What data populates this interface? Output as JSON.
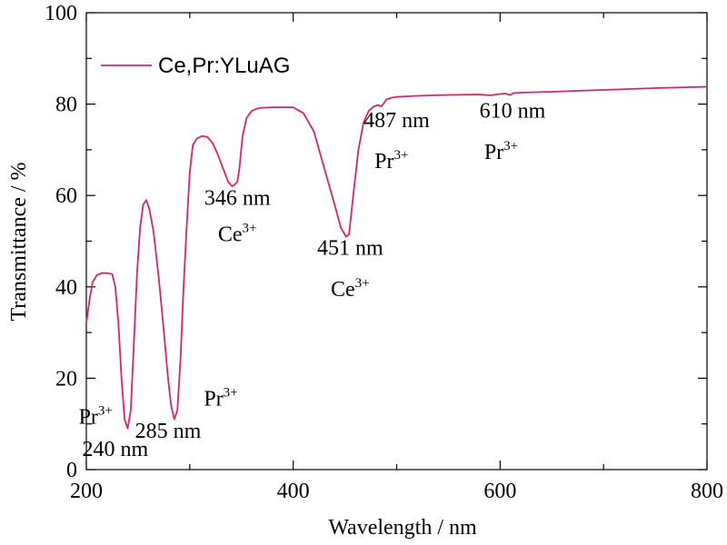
{
  "chart_data": {
    "type": "line",
    "xlabel": "Wavelength / nm",
    "ylabel": "Transmittance / %",
    "xlim": [
      200,
      800
    ],
    "ylim": [
      0,
      100
    ],
    "x_ticks": [
      200,
      400,
      600,
      800
    ],
    "y_ticks": [
      0,
      20,
      40,
      60,
      80,
      100
    ],
    "x_tick_labels": [
      "200",
      "400",
      "600",
      "800"
    ],
    "y_tick_labels": [
      "0",
      "20",
      "40",
      "60",
      "80",
      "100"
    ],
    "grid": false,
    "legend_position": "top-left",
    "series": [
      {
        "name": "Ce,Pr:YLuAG",
        "color": "#d6246e",
        "x": [
          200,
          203,
          206,
          210,
          215,
          220,
          225,
          228,
          231,
          234,
          237,
          240,
          243,
          246,
          249,
          252,
          255,
          258,
          261,
          265,
          270,
          275,
          279,
          282,
          285,
          288,
          291,
          294,
          297,
          300,
          303,
          307,
          312,
          317,
          322,
          327,
          332,
          337,
          341,
          344,
          346,
          348,
          351,
          355,
          360,
          365,
          370,
          380,
          390,
          400,
          410,
          420,
          430,
          440,
          446,
          451,
          454,
          458,
          463,
          468,
          473,
          478,
          482,
          485,
          487,
          490,
          495,
          500,
          520,
          550,
          580,
          590,
          600,
          605,
          608,
          610,
          613,
          620,
          650,
          700,
          750,
          800
        ],
        "y": [
          32,
          37,
          41,
          42.5,
          43,
          43,
          42.8,
          40,
          32,
          20,
          11,
          9,
          13,
          28,
          43,
          53,
          58,
          59,
          57,
          52,
          42,
          30,
          20,
          14,
          11,
          13,
          24,
          40,
          53,
          65,
          71,
          72.5,
          73,
          72.8,
          71.5,
          69,
          66,
          63,
          62,
          62.5,
          63,
          66,
          73,
          77,
          78.5,
          79,
          79.2,
          79.3,
          79.3,
          79.3,
          78,
          74,
          66,
          58,
          53,
          51,
          51.5,
          60,
          70,
          76,
          78.5,
          79.5,
          79.8,
          79.5,
          80,
          81,
          81.4,
          81.6,
          81.8,
          82,
          82.1,
          81.9,
          82.2,
          82.3,
          82.1,
          82,
          82.4,
          82.5,
          82.7,
          83.1,
          83.5,
          83.8
        ]
      }
    ],
    "annotations": [
      {
        "text": "240 nm",
        "x": 228,
        "y": 3
      },
      {
        "text": "285 nm",
        "x": 279,
        "y": 7
      },
      {
        "text": "346 nm",
        "x": 346,
        "y": 58
      },
      {
        "text": "451 nm",
        "x": 455,
        "y": 47
      },
      {
        "text": "487 nm",
        "x": 500,
        "y": 75
      },
      {
        "text": "610 nm",
        "x": 612,
        "y": 77
      }
    ],
    "ion_labels": [
      {
        "base": "Pr",
        "sup": "3+",
        "x": 209,
        "y": 10
      },
      {
        "base": "Pr",
        "sup": "3+",
        "x": 330,
        "y": 14
      },
      {
        "base": "Ce",
        "sup": "3+",
        "x": 346,
        "y": 50
      },
      {
        "base": "Ce",
        "sup": "3+",
        "x": 455,
        "y": 38
      },
      {
        "base": "Pr",
        "sup": "3+",
        "x": 495,
        "y": 66
      },
      {
        "base": "Pr",
        "sup": "3+",
        "x": 601,
        "y": 68
      }
    ]
  }
}
